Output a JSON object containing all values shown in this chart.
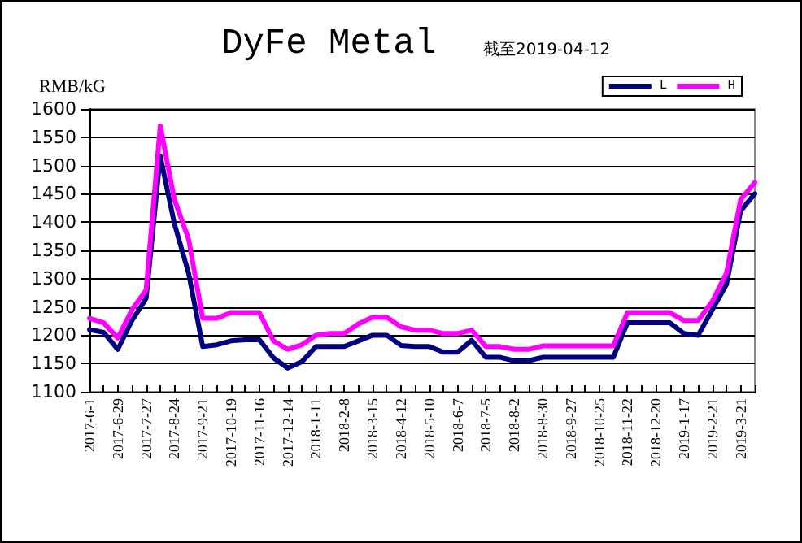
{
  "chart_data": {
    "type": "line",
    "title": "DyFe Metal",
    "subtitle": "截至2019-04-12",
    "ylabel": "RMB/kG",
    "categories": [
      "2017-6-1",
      null,
      "2017-6-29",
      null,
      "2017-7-27",
      null,
      "2017-8-24",
      null,
      "2017-9-21",
      null,
      "2017-10-19",
      null,
      "2017-11-16",
      null,
      "2017-12-14",
      null,
      "2018-1-11",
      null,
      "2018-2-8",
      null,
      "2018-3-15",
      null,
      "2018-4-12",
      null,
      "2018-5-10",
      null,
      "2018-6-7",
      null,
      "2018-7-5",
      null,
      "2018-8-2",
      null,
      "2018-8-30",
      null,
      "2018-9-27",
      null,
      "2018-10-25",
      null,
      "2018-11-22",
      null,
      "2018-12-20",
      null,
      "2019-1-17",
      null,
      "2019-2-21",
      null,
      "2019-3-21",
      null
    ],
    "series": [
      {
        "name": "L",
        "color": "#000080",
        "values": [
          1210,
          1205,
          1175,
          1226,
          1265,
          1517,
          1397,
          1310,
          1180,
          1183,
          1190,
          1192,
          1192,
          1160,
          1142,
          1153,
          1180,
          1180,
          1180,
          1190,
          1200,
          1200,
          1182,
          1180,
          1180,
          1170,
          1170,
          1191,
          1161,
          1161,
          1155,
          1155,
          1161,
          1161,
          1161,
          1161,
          1161,
          1161,
          1222,
          1222,
          1222,
          1222,
          1203,
          1200,
          1245,
          1290,
          1420,
          1450
        ]
      },
      {
        "name": "H",
        "color": "#ff00ff",
        "values": [
          1230,
          1222,
          1195,
          1245,
          1280,
          1570,
          1440,
          1370,
          1230,
          1230,
          1240,
          1240,
          1240,
          1190,
          1175,
          1183,
          1200,
          1203,
          1203,
          1220,
          1232,
          1232,
          1215,
          1209,
          1209,
          1203,
          1203,
          1209,
          1180,
          1180,
          1175,
          1175,
          1181,
          1181,
          1181,
          1181,
          1181,
          1181,
          1240,
          1240,
          1240,
          1240,
          1226,
          1226,
          1260,
          1310,
          1440,
          1470
        ]
      }
    ],
    "ylim": [
      1100,
      1600
    ],
    "yticks": [
      1100,
      1150,
      1200,
      1250,
      1300,
      1350,
      1400,
      1450,
      1500,
      1550,
      1600
    ],
    "grid": "y",
    "legend": "top right",
    "marker": "none",
    "line_style": "solid"
  }
}
